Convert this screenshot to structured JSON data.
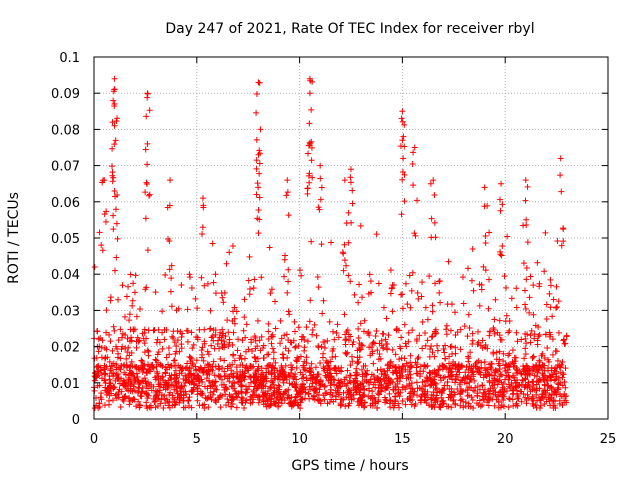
{
  "chart_data": {
    "type": "scatter",
    "title": "Day 247 of 2021, Rate Of TEC Index for receiver rbyl",
    "xlabel": "GPS time / hours",
    "ylabel": "ROTI / TECUs",
    "xlim": [
      0,
      25
    ],
    "ylim": [
      0,
      0.1
    ],
    "x_ticks": [
      "0",
      "5",
      "10",
      "15",
      "20",
      "25"
    ],
    "y_ticks": [
      "0",
      "0.01",
      "0.02",
      "0.03",
      "0.04",
      "0.05",
      "0.06",
      "0.07",
      "0.08",
      "0.09",
      "0.1"
    ],
    "x_tick_values": [
      0,
      5,
      10,
      15,
      20,
      25
    ],
    "y_tick_values": [
      0,
      0.01,
      0.02,
      0.03,
      0.04,
      0.05,
      0.06,
      0.07,
      0.08,
      0.09,
      0.1
    ],
    "grid": true,
    "marker": "plus",
    "marker_color": "#ff0000",
    "series": [
      {
        "name": "ROTI",
        "data_range_hours": [
          0,
          23
        ],
        "highlights": [
          {
            "x": 0.5,
            "y": 0.066
          },
          {
            "x": 1.0,
            "y": 0.094
          },
          {
            "x": 1.0,
            "y": 0.087
          },
          {
            "x": 1.0,
            "y": 0.081
          },
          {
            "x": 1.0,
            "y": 0.063
          },
          {
            "x": 2.6,
            "y": 0.09
          },
          {
            "x": 2.6,
            "y": 0.076
          },
          {
            "x": 3.7,
            "y": 0.066
          },
          {
            "x": 5.3,
            "y": 0.061
          },
          {
            "x": 8.0,
            "y": 0.093
          },
          {
            "x": 8.1,
            "y": 0.08
          },
          {
            "x": 8.0,
            "y": 0.073
          },
          {
            "x": 9.4,
            "y": 0.066
          },
          {
            "x": 10.5,
            "y": 0.094
          },
          {
            "x": 10.5,
            "y": 0.09
          },
          {
            "x": 10.5,
            "y": 0.076
          },
          {
            "x": 11.0,
            "y": 0.07
          },
          {
            "x": 12.2,
            "y": 0.066
          },
          {
            "x": 12.5,
            "y": 0.069
          },
          {
            "x": 15.0,
            "y": 0.085
          },
          {
            "x": 15.0,
            "y": 0.077
          },
          {
            "x": 15.6,
            "y": 0.075
          },
          {
            "x": 16.5,
            "y": 0.066
          },
          {
            "x": 19.0,
            "y": 0.064
          },
          {
            "x": 19.8,
            "y": 0.065
          },
          {
            "x": 21.0,
            "y": 0.066
          },
          {
            "x": 22.7,
            "y": 0.072
          }
        ]
      }
    ]
  }
}
